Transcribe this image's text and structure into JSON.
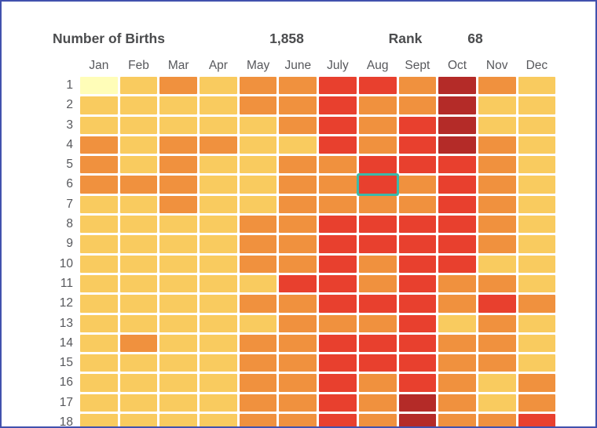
{
  "page": {
    "border_color": "#4151AD",
    "background_color": "#FFFFFF"
  },
  "header": {
    "births_label": "Number of Births",
    "births_value": "1,858",
    "rank_label": "Rank",
    "rank_value": "68"
  },
  "chart_data": {
    "type": "heatmap",
    "title": "Number of Births",
    "births_value": 1858,
    "rank": 68,
    "columns": [
      "Jan",
      "Feb",
      "Mar",
      "Apr",
      "May",
      "June",
      "July",
      "Aug",
      "Sept",
      "Oct",
      "Nov",
      "Dec"
    ],
    "rows": [
      "1",
      "2",
      "3",
      "4",
      "5",
      "6",
      "7",
      "8",
      "9",
      "10",
      "11",
      "12",
      "13",
      "14",
      "15",
      "16",
      "17",
      "18"
    ],
    "rows_note": "rows are day-of-month; row 18 is clipped by the bottom edge of the viewport",
    "palette": {
      "1": "#FFFDB8",
      "2": "#F9CB5F",
      "3": "#F0913E",
      "4": "#E8402E",
      "5": "#B42B28"
    },
    "palette_note": "1 = fewest births (pale yellow) through 5 = most births (dark red)",
    "cells": [
      [
        1,
        2,
        3,
        2,
        3,
        3,
        4,
        4,
        3,
        5,
        3,
        2
      ],
      [
        2,
        2,
        2,
        2,
        3,
        3,
        4,
        3,
        3,
        5,
        2,
        2
      ],
      [
        2,
        2,
        2,
        2,
        2,
        3,
        4,
        3,
        4,
        5,
        2,
        2
      ],
      [
        3,
        2,
        3,
        3,
        2,
        2,
        4,
        3,
        4,
        5,
        3,
        2
      ],
      [
        3,
        2,
        3,
        2,
        2,
        3,
        3,
        4,
        4,
        4,
        3,
        2
      ],
      [
        3,
        3,
        3,
        2,
        2,
        3,
        3,
        4,
        3,
        4,
        3,
        2
      ],
      [
        2,
        2,
        3,
        2,
        2,
        3,
        3,
        3,
        3,
        4,
        3,
        2
      ],
      [
        2,
        2,
        2,
        2,
        3,
        3,
        4,
        4,
        4,
        4,
        3,
        2
      ],
      [
        2,
        2,
        2,
        2,
        3,
        3,
        4,
        4,
        4,
        4,
        3,
        2
      ],
      [
        2,
        2,
        2,
        2,
        3,
        3,
        4,
        3,
        4,
        4,
        2,
        2
      ],
      [
        2,
        2,
        2,
        2,
        2,
        4,
        4,
        3,
        4,
        3,
        3,
        2
      ],
      [
        2,
        2,
        2,
        2,
        3,
        3,
        4,
        4,
        4,
        3,
        4,
        3
      ],
      [
        2,
        2,
        2,
        2,
        2,
        3,
        3,
        3,
        4,
        2,
        3,
        2
      ],
      [
        2,
        3,
        2,
        2,
        3,
        3,
        4,
        4,
        4,
        3,
        3,
        2
      ],
      [
        2,
        2,
        2,
        2,
        3,
        3,
        4,
        4,
        4,
        3,
        3,
        2
      ],
      [
        2,
        2,
        2,
        2,
        3,
        3,
        4,
        3,
        4,
        3,
        2,
        3
      ],
      [
        2,
        2,
        2,
        2,
        3,
        3,
        4,
        3,
        5,
        3,
        2,
        3
      ],
      [
        2,
        2,
        2,
        2,
        3,
        3,
        4,
        3,
        5,
        3,
        3,
        4
      ]
    ],
    "selected": {
      "row": "6",
      "column": "Aug",
      "row_index": 5,
      "col_index": 7,
      "highlight_color": "#3CB9A9"
    },
    "legend_position": "none",
    "grid": "white gutters between cells"
  }
}
